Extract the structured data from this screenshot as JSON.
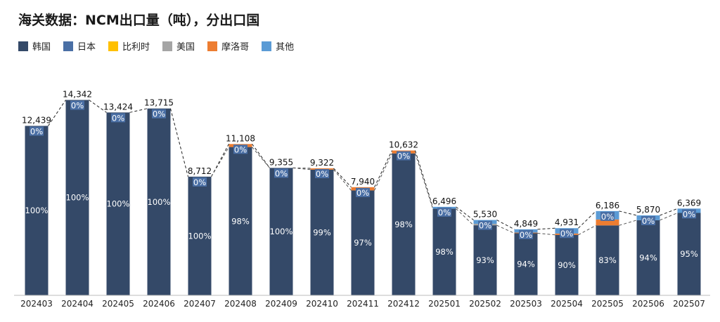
{
  "chart_data": {
    "type": "bar",
    "stacked": true,
    "title": "海关数据：NCM出口量（吨），分出口国",
    "legend_position": "top-left",
    "grid": false,
    "ylim": [
      0,
      15500
    ],
    "categories": [
      "202403",
      "202404",
      "202405",
      "202406",
      "202407",
      "202408",
      "202409",
      "202410",
      "202411",
      "202412",
      "202501",
      "202502",
      "202503",
      "202504",
      "202505",
      "202506",
      "202507"
    ],
    "totals": [
      12439,
      14342,
      13424,
      13715,
      8712,
      11108,
      9355,
      9322,
      7940,
      10632,
      6496,
      5530,
      4849,
      4931,
      6186,
      5870,
      6369
    ],
    "totals_labels": [
      "12,439",
      "14,342",
      "13,424",
      "13,715",
      "8,712",
      "11,108",
      "9,355",
      "9,322",
      "7,940",
      "10,632",
      "6,496",
      "5,530",
      "4,849",
      "4,931",
      "6,186",
      "5,870",
      "6,369"
    ],
    "korea_share_labels": [
      "100%",
      "100%",
      "100%",
      "100%",
      "100%",
      "98%",
      "100%",
      "99%",
      "97%",
      "98%",
      "98%",
      "93%",
      "94%",
      "90%",
      "83%",
      "94%",
      "95%"
    ],
    "japan_share_labels": [
      "0%",
      "0%",
      "0%",
      "0%",
      "0%",
      "0%",
      "0%",
      "0%",
      "0%",
      "0%",
      "0%",
      "0%",
      "0%",
      "0%",
      "0%",
      "0%",
      "0%"
    ],
    "series": [
      {
        "name": "韩国",
        "color": "#344968",
        "values": [
          12439,
          14342,
          13424,
          13715,
          8712,
          10886,
          9355,
          9229,
          7702,
          10419,
          6366,
          5143,
          4558,
          4438,
          5134,
          5518,
          6051
        ]
      },
      {
        "name": "日本",
        "color": "#4A6FA5",
        "values": [
          0,
          0,
          0,
          0,
          0,
          0,
          0,
          0,
          0,
          0,
          0,
          0,
          0,
          0,
          0,
          0,
          0
        ]
      },
      {
        "name": "比利时",
        "color": "#FFC000",
        "values": [
          0,
          0,
          0,
          0,
          0,
          0,
          0,
          0,
          0,
          0,
          0,
          0,
          0,
          0,
          0,
          0,
          0
        ]
      },
      {
        "name": "美国",
        "color": "#A5A5A5",
        "values": [
          0,
          0,
          0,
          0,
          0,
          0,
          0,
          0,
          0,
          0,
          0,
          111,
          0,
          0,
          0,
          0,
          0
        ]
      },
      {
        "name": "摩洛哥",
        "color": "#ED7D31",
        "values": [
          0,
          0,
          0,
          0,
          0,
          222,
          0,
          93,
          238,
          213,
          0,
          0,
          48,
          99,
          433,
          0,
          0
        ]
      },
      {
        "name": "其他",
        "color": "#5B9BD5",
        "values": [
          0,
          0,
          0,
          0,
          0,
          0,
          0,
          0,
          0,
          0,
          130,
          276,
          243,
          394,
          619,
          352,
          318
        ]
      }
    ]
  }
}
